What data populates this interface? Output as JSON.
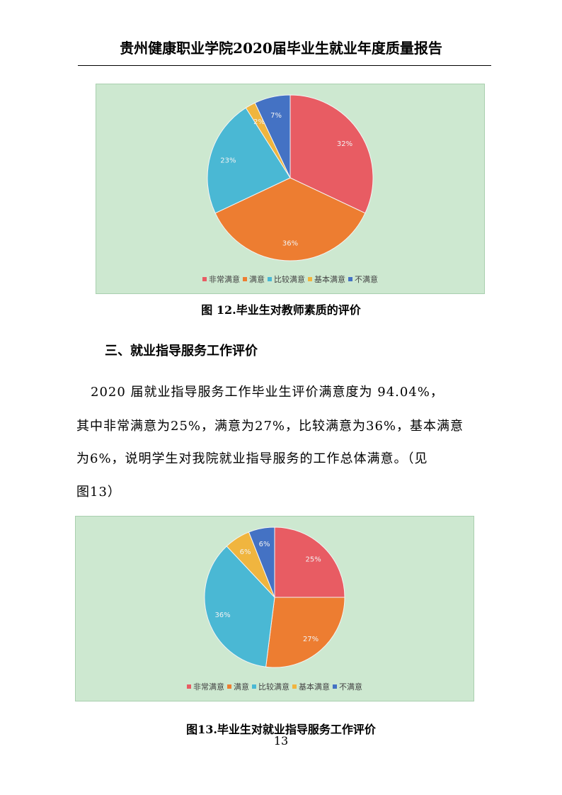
{
  "header": {
    "title": "贵州健康职业学院2020届毕业生就业年度质量报告"
  },
  "figure12": {
    "caption": "图 12.毕业生对教师素质的评价"
  },
  "section": {
    "heading": "三、就业指导服务工作评价"
  },
  "paragraph": {
    "lines": [
      "2020 届就业指导服务工作毕业生评价满意度为 94.04%，",
      "其中非常满意为25%，满意为27%，比较满意为36%，基本满意",
      "为6%，说明学生对我院就业指导服务的工作总体满意。（见",
      "图13）"
    ]
  },
  "figure13": {
    "caption": "图13.毕业生对就业指导服务工作评价"
  },
  "page_number": "13",
  "chart_data": [
    {
      "type": "pie",
      "background": "#cde8d0",
      "legend_position": "bottom",
      "categories": [
        "非常满意",
        "满意",
        "比较满意",
        "基本满意",
        "不满意"
      ],
      "values": [
        32,
        36,
        23,
        2,
        7
      ],
      "labels": [
        "32%",
        "36%",
        "23%",
        "2%",
        "7%"
      ],
      "colors": [
        "#e85c63",
        "#ed7d31",
        "#4ab8d4",
        "#f0b53f",
        "#4472c4"
      ]
    },
    {
      "type": "pie",
      "background": "#cde8d0",
      "legend_position": "bottom",
      "categories": [
        "非常满意",
        "满意",
        "比较满意",
        "基本满意",
        "不满意"
      ],
      "values": [
        25,
        27,
        36,
        6,
        6
      ],
      "labels": [
        "25%",
        "27%",
        "36%",
        "6%",
        "6%"
      ],
      "colors": [
        "#e85c63",
        "#ed7d31",
        "#4ab8d4",
        "#f0b53f",
        "#4472c4"
      ]
    }
  ]
}
